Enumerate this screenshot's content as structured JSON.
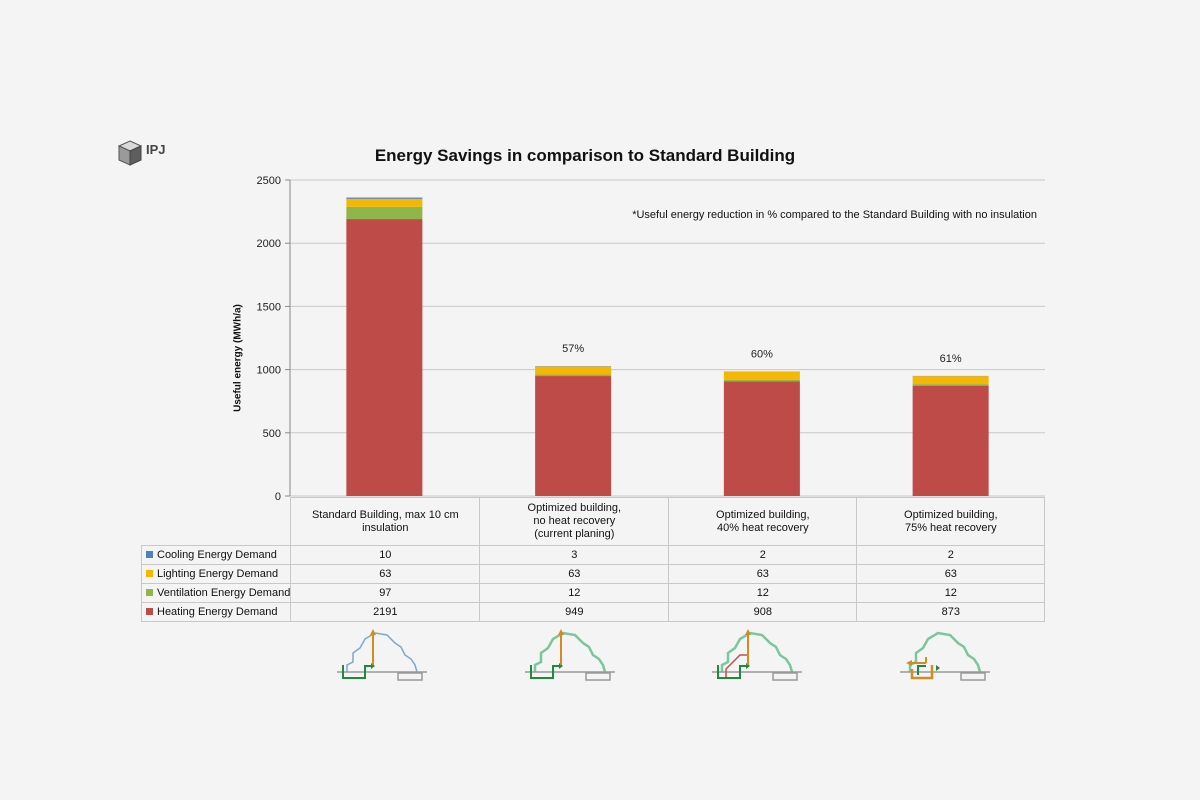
{
  "title": "Energy Savings in comparison to Standard Building",
  "logo": {
    "text": "IPJ"
  },
  "note": "*Useful energy reduction in % compared to the Standard Building with no insulation",
  "colors": {
    "cooling": "#4f81bd",
    "lighting": "#f5b700",
    "ventilation": "#8eb64a",
    "heating": "#be4b48",
    "grid": "#c8c8c8"
  },
  "chart_data": {
    "type": "bar",
    "stacked": true,
    "ylabel": "Useful energy (MWh/a)",
    "ylim": [
      0,
      2500
    ],
    "yticks": [
      0,
      500,
      1000,
      1500,
      2000,
      2500
    ],
    "grid": true,
    "categories": [
      "Standard Building, max 10 cm\ninsulation",
      "Optimized building,\nno heat recovery\n(current planing)",
      "Optimized building,\n40% heat recovery",
      "Optimized building,\n75% heat recovery"
    ],
    "series": [
      {
        "name": "Heating Energy Demand",
        "key": "heating",
        "values": [
          2191,
          949,
          908,
          873
        ]
      },
      {
        "name": "Ventilation Energy Demand",
        "key": "ventilation",
        "values": [
          97,
          12,
          12,
          12
        ]
      },
      {
        "name": "Lighting Energy Demand",
        "key": "lighting",
        "values": [
          63,
          63,
          63,
          63
        ]
      },
      {
        "name": "Cooling Energy Demand",
        "key": "cooling",
        "values": [
          10,
          3,
          2,
          2
        ]
      }
    ],
    "table_order": [
      "cooling",
      "lighting",
      "ventilation",
      "heating"
    ],
    "annotations": [
      "",
      "57%",
      "60%",
      "61%"
    ]
  }
}
